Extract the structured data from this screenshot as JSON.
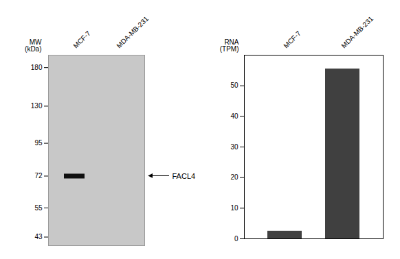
{
  "chart_data": [
    {
      "type": "blot",
      "categories": [
        "MCF-7",
        "MDA-MB-231"
      ],
      "values": [
        72,
        null
      ],
      "color": "#101010",
      "ylabel": "MW\n(kDa)",
      "log": "y",
      "ylim": [
        40,
        200
      ],
      "yticks": [
        180,
        130,
        95,
        72,
        55,
        43
      ],
      "annotations": [
        {
          "text": "FACL4",
          "y": 72
        }
      ]
    },
    {
      "type": "bar",
      "categories": [
        "MCF-7",
        "MDA-MB-231"
      ],
      "values": [
        2.5,
        55.5
      ],
      "color": "#404040",
      "ylabel": "RNA\n(TPM)",
      "ylim": [
        0,
        60
      ],
      "yticks": [
        0,
        10,
        20,
        30,
        40,
        50
      ]
    }
  ]
}
